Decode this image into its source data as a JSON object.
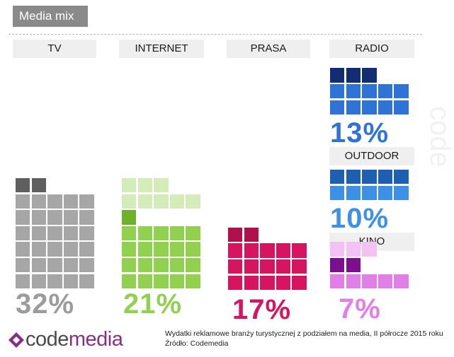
{
  "title": "Media mix",
  "chart_data": {
    "type": "waffle",
    "title": "Media mix",
    "unit": "%",
    "categories": [
      {
        "name": "TV",
        "value": 32,
        "label": "32%",
        "color": "#a6a6a6",
        "dark_color": "#5f5f5f",
        "light_color": "#d0d0d0"
      },
      {
        "name": "INTERNET",
        "value": 21,
        "label": "21%",
        "color": "#92d050",
        "dark_color": "#6fb12c",
        "light_color": "#d4ecba"
      },
      {
        "name": "PRASA",
        "value": 17,
        "label": "17%",
        "color": "#d6145f",
        "dark_color": "#b0104c",
        "light_color": "#f0a0c0"
      },
      {
        "name": "RADIO",
        "value": 13,
        "label": "13%",
        "color": "#2f73d7",
        "dark_color": "#142c72",
        "light_color": "#9cc0f0"
      },
      {
        "name": "OUTDOOR",
        "value": 10,
        "label": "10%",
        "color": "#3c91e6",
        "dark_color": "#1f5fb0",
        "light_color": "#a8cdf4"
      },
      {
        "name": "KINO",
        "value": 7,
        "label": "7%",
        "color": "#e27ee8",
        "dark_color": "#7b0f8e",
        "light_color": "#f3c2f5"
      }
    ]
  },
  "logo": {
    "part1": "code",
    "part2": "media"
  },
  "footnote": {
    "line1": "Wydatki reklamowe branży turystycznej z podziałem na media,  II  półrocze 2015 roku",
    "line2": "Źródło: Codemedia"
  },
  "watermark": "code",
  "colors": {
    "title_bg": "#8a8a8a",
    "label_bg": "#efefef",
    "logo_purple": "#8a2e85"
  }
}
